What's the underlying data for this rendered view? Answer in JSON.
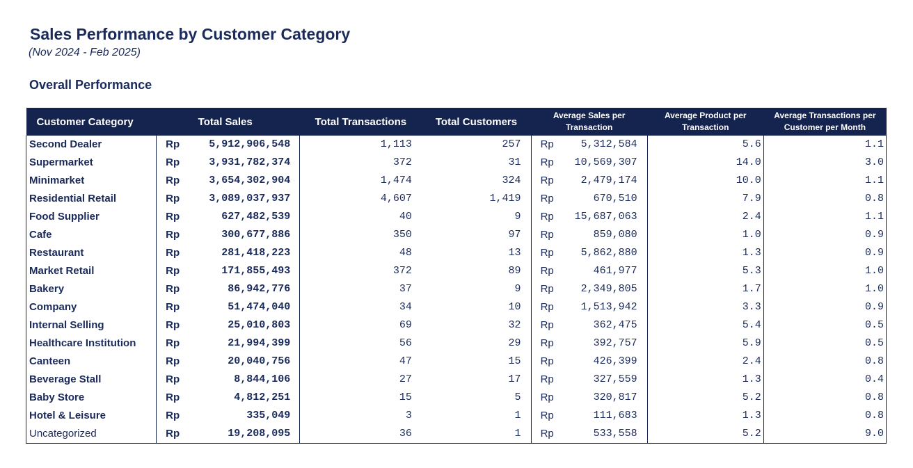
{
  "title": "Sales Performance by Customer Category",
  "subtitle": "(Nov 2024 - Feb 2025)",
  "section_title": "Overall Performance",
  "colors": {
    "header_bg": "#15234f",
    "header_text": "#ffffff",
    "text": "#1a2a5a"
  },
  "table": {
    "headers": {
      "category": "Customer Category",
      "total_sales": "Total Sales",
      "total_transactions": "Total Transactions",
      "total_customers": "Total Customers",
      "avg_sales_line1": "Average Sales per",
      "avg_sales_line2": "Transaction",
      "avg_product_line1": "Average Product per",
      "avg_product_line2": "Transaction",
      "avg_trx_line1": "Average Transactions per",
      "avg_trx_line2": "Customer per Month"
    },
    "currency": "Rp",
    "rows": [
      {
        "category": "Second Dealer",
        "total_sales": "5,912,906,548",
        "transactions": "1,113",
        "customers": "257",
        "avg_sales": "5,312,584",
        "avg_product": "5.6",
        "avg_trx": "1.1",
        "bold": true
      },
      {
        "category": "Supermarket",
        "total_sales": "3,931,782,374",
        "transactions": "372",
        "customers": "31",
        "avg_sales": "10,569,307",
        "avg_product": "14.0",
        "avg_trx": "3.0",
        "bold": true
      },
      {
        "category": "Minimarket",
        "total_sales": "3,654,302,904",
        "transactions": "1,474",
        "customers": "324",
        "avg_sales": "2,479,174",
        "avg_product": "10.0",
        "avg_trx": "1.1",
        "bold": true
      },
      {
        "category": "Residential Retail",
        "total_sales": "3,089,037,937",
        "transactions": "4,607",
        "customers": "1,419",
        "avg_sales": "670,510",
        "avg_product": "7.9",
        "avg_trx": "0.8",
        "bold": true
      },
      {
        "category": "Food Supplier",
        "total_sales": "627,482,539",
        "transactions": "40",
        "customers": "9",
        "avg_sales": "15,687,063",
        "avg_product": "2.4",
        "avg_trx": "1.1",
        "bold": true
      },
      {
        "category": "Cafe",
        "total_sales": "300,677,886",
        "transactions": "350",
        "customers": "97",
        "avg_sales": "859,080",
        "avg_product": "1.0",
        "avg_trx": "0.9",
        "bold": true
      },
      {
        "category": "Restaurant",
        "total_sales": "281,418,223",
        "transactions": "48",
        "customers": "13",
        "avg_sales": "5,862,880",
        "avg_product": "1.3",
        "avg_trx": "0.9",
        "bold": true
      },
      {
        "category": "Market Retail",
        "total_sales": "171,855,493",
        "transactions": "372",
        "customers": "89",
        "avg_sales": "461,977",
        "avg_product": "5.3",
        "avg_trx": "1.0",
        "bold": true
      },
      {
        "category": "Bakery",
        "total_sales": "86,942,776",
        "transactions": "37",
        "customers": "9",
        "avg_sales": "2,349,805",
        "avg_product": "1.7",
        "avg_trx": "1.0",
        "bold": true
      },
      {
        "category": "Company",
        "total_sales": "51,474,040",
        "transactions": "34",
        "customers": "10",
        "avg_sales": "1,513,942",
        "avg_product": "3.3",
        "avg_trx": "0.9",
        "bold": true
      },
      {
        "category": "Internal Selling",
        "total_sales": "25,010,803",
        "transactions": "69",
        "customers": "32",
        "avg_sales": "362,475",
        "avg_product": "5.4",
        "avg_trx": "0.5",
        "bold": true
      },
      {
        "category": "Healthcare Institution",
        "total_sales": "21,994,399",
        "transactions": "56",
        "customers": "29",
        "avg_sales": "392,757",
        "avg_product": "5.9",
        "avg_trx": "0.5",
        "bold": true
      },
      {
        "category": "Canteen",
        "total_sales": "20,040,756",
        "transactions": "47",
        "customers": "15",
        "avg_sales": "426,399",
        "avg_product": "2.4",
        "avg_trx": "0.8",
        "bold": true
      },
      {
        "category": "Beverage Stall",
        "total_sales": "8,844,106",
        "transactions": "27",
        "customers": "17",
        "avg_sales": "327,559",
        "avg_product": "1.3",
        "avg_trx": "0.4",
        "bold": true
      },
      {
        "category": "Baby Store",
        "total_sales": "4,812,251",
        "transactions": "15",
        "customers": "5",
        "avg_sales": "320,817",
        "avg_product": "5.2",
        "avg_trx": "0.8",
        "bold": true
      },
      {
        "category": "Hotel & Leisure",
        "total_sales": "335,049",
        "transactions": "3",
        "customers": "1",
        "avg_sales": "111,683",
        "avg_product": "1.3",
        "avg_trx": "0.8",
        "bold": true
      },
      {
        "category": "Uncategorized",
        "total_sales": "19,208,095",
        "transactions": "36",
        "customers": "1",
        "avg_sales": "533,558",
        "avg_product": "5.2",
        "avg_trx": "9.0",
        "bold": false
      }
    ]
  }
}
